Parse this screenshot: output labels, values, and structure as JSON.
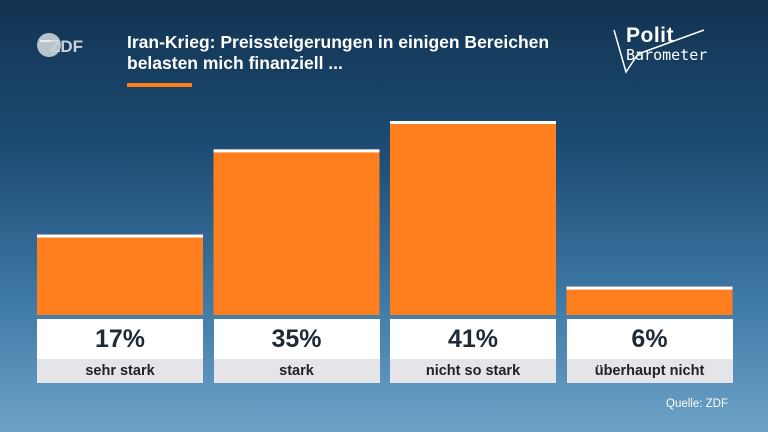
{
  "header": {
    "title_line1": "Iran-Krieg: Preissteigerungen in einigen Bereichen",
    "title_line2": "belasten mich finanziell ...",
    "brand_logo_text": "ZDF",
    "polit_line1": "Polit",
    "polit_line2": "Barometer",
    "accent_color": "#ff7f1f"
  },
  "chart_data": {
    "type": "bar",
    "categories": [
      "sehr stark",
      "stark",
      "nicht so stark",
      "überhaupt nicht"
    ],
    "values": [
      17,
      35,
      41,
      6
    ],
    "value_labels": [
      "17%",
      "35%",
      "41%",
      "6%"
    ],
    "ylim": [
      0,
      41
    ],
    "grid": false,
    "bar_color": "#ff7f1f"
  },
  "footer": {
    "source": "Quelle: ZDF"
  }
}
